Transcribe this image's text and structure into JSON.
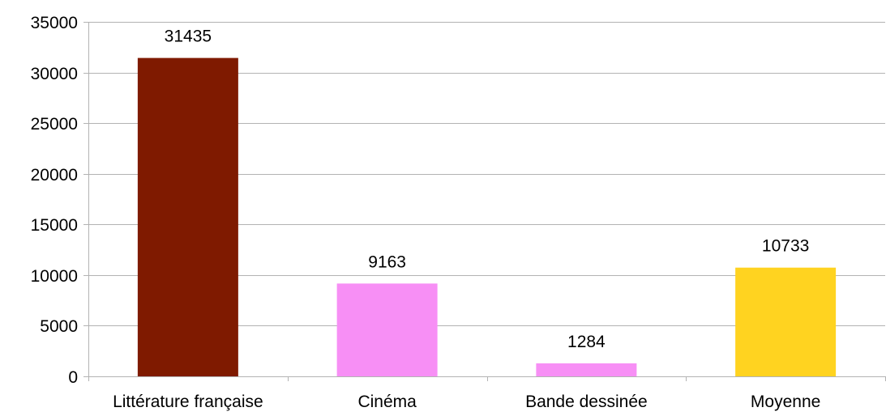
{
  "chart_data": {
    "type": "bar",
    "categories": [
      "Littérature française",
      "Cinéma",
      "Bande dessinée",
      "Moyenne"
    ],
    "values": [
      31435,
      9163,
      1284,
      10733
    ],
    "colors": [
      "#7F1A00",
      "#F78FF5",
      "#F78FF5",
      "#FFD320"
    ],
    "data_labels": [
      "31435",
      "9163",
      "1284",
      "10733"
    ],
    "ylim": [
      0,
      35000
    ],
    "yticks": [
      0,
      5000,
      10000,
      15000,
      20000,
      25000,
      30000,
      35000
    ],
    "ytick_labels": [
      "0",
      "5000",
      "10000",
      "15000",
      "20000",
      "25000",
      "30000",
      "35000"
    ],
    "grid": true,
    "legend": "none"
  }
}
